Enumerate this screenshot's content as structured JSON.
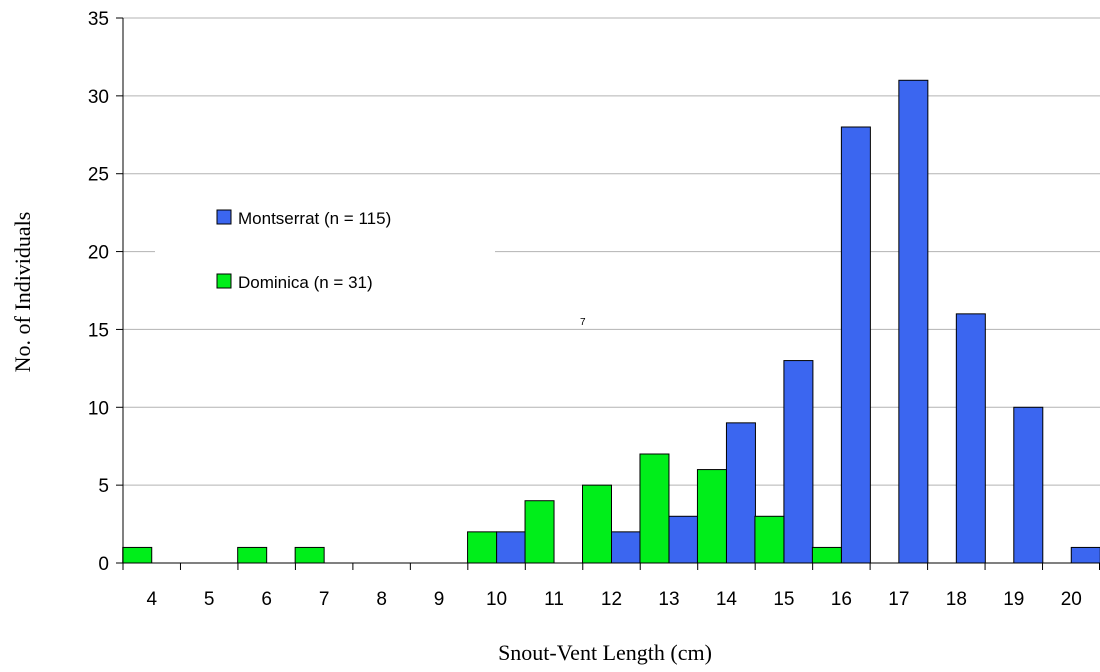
{
  "chart_data": {
    "type": "bar",
    "xlabel": "Snout-Vent Length (cm)",
    "ylabel": "No. of Individuals",
    "ylim": [
      0,
      35
    ],
    "yticks": [
      0,
      5,
      10,
      15,
      20,
      25,
      30,
      35
    ],
    "grid": "horizontal",
    "legend_position": "upper-left",
    "annotation": "7",
    "categories": [
      "4",
      "5",
      "6",
      "7",
      "8",
      "9",
      "10",
      "11",
      "12",
      "13",
      "14",
      "15",
      "16",
      "17",
      "18",
      "19",
      "20"
    ],
    "series": [
      {
        "name": "Montserrat (n = 115)",
        "color": "#3B66F0",
        "values": [
          0,
          0,
          0,
          0,
          0,
          0,
          2,
          0,
          2,
          3,
          9,
          13,
          28,
          31,
          16,
          10,
          1
        ]
      },
      {
        "name": "Dominica (n = 31)",
        "color": "#00EE1A",
        "values": [
          1,
          0,
          1,
          1,
          0,
          0,
          2,
          4,
          5,
          7,
          6,
          3,
          1,
          0,
          0,
          0,
          0
        ]
      }
    ]
  }
}
